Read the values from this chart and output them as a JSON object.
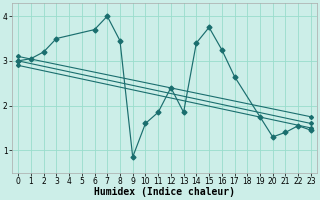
{
  "background_color": "#cceee8",
  "grid_color": "#99ddcc",
  "line_color": "#1a6e6e",
  "xlabel": "Humidex (Indice chaleur)",
  "xlim": [
    -0.5,
    23.5
  ],
  "ylim": [
    0.5,
    4.3
  ],
  "yticks": [
    1,
    2,
    3,
    4
  ],
  "xticks": [
    0,
    1,
    2,
    3,
    4,
    5,
    6,
    7,
    8,
    9,
    10,
    11,
    12,
    13,
    14,
    15,
    16,
    17,
    18,
    19,
    20,
    21,
    22,
    23
  ],
  "zigzag": {
    "x": [
      0,
      1,
      2,
      3,
      6,
      7,
      8,
      9,
      10,
      11,
      12,
      13,
      14,
      15,
      16,
      17,
      19,
      20,
      21,
      22,
      23
    ],
    "y": [
      3.0,
      3.05,
      3.2,
      3.5,
      3.7,
      4.0,
      3.45,
      0.85,
      1.6,
      1.85,
      2.4,
      1.85,
      3.4,
      3.75,
      3.25,
      2.65,
      1.75,
      1.3,
      1.4,
      1.55,
      1.45
    ]
  },
  "trend_lines": [
    {
      "x": [
        0,
        23
      ],
      "y": [
        3.1,
        1.75
      ]
    },
    {
      "x": [
        0,
        23
      ],
      "y": [
        3.0,
        1.6
      ]
    },
    {
      "x": [
        0,
        23
      ],
      "y": [
        2.9,
        1.5
      ]
    }
  ],
  "tick_fontsize": 5.5,
  "xlabel_fontsize": 7
}
